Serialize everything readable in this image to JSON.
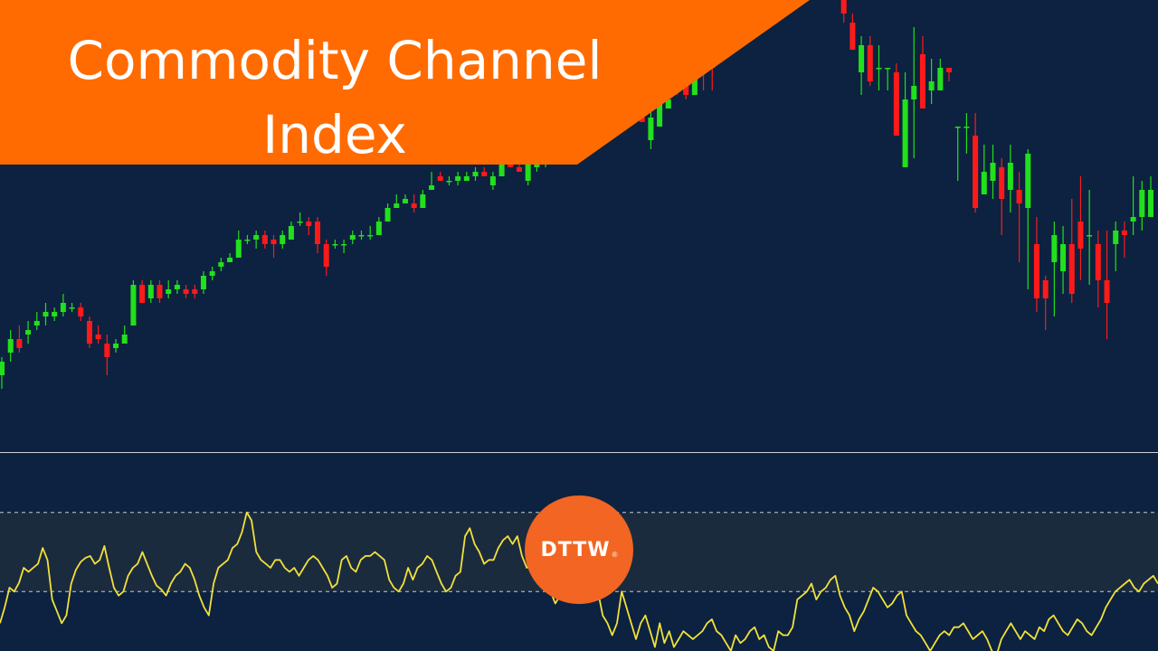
{
  "title": "Commodity Channel Index",
  "logo": {
    "text": "DTTW",
    "mark": "®"
  },
  "colors": {
    "background": "#0c2240",
    "banner": "#ff6b00",
    "candle_up": "#22e01c",
    "candle_down": "#ff1a1a",
    "wick": "#c8c8c8",
    "indicator_line": "#f2e13a",
    "band_fill": "#1b2b3e",
    "band_line": "#c9cdd2",
    "separator": "#cfd3d8",
    "logo_bg": "#f26522"
  },
  "chart_data": [
    {
      "type": "candlestick",
      "title": "",
      "xlabel": "",
      "ylabel": "",
      "grid": false,
      "ylim": [
        0,
        100
      ],
      "candles": [
        [
          17,
          20,
          21,
          14
        ],
        [
          22,
          25,
          27,
          20
        ],
        [
          25,
          23,
          28,
          22
        ],
        [
          26,
          27,
          29,
          24
        ],
        [
          28,
          29,
          31,
          27
        ],
        [
          30,
          31,
          33,
          28
        ],
        [
          30,
          31,
          32,
          29
        ],
        [
          31,
          33,
          35,
          30
        ],
        [
          32,
          32,
          33,
          31
        ],
        [
          32,
          30,
          33,
          29
        ],
        [
          29,
          24,
          30,
          23
        ],
        [
          26,
          25,
          28,
          24
        ],
        [
          24,
          21,
          26,
          17
        ],
        [
          23,
          24,
          25,
          22
        ],
        [
          24,
          26,
          28,
          24
        ],
        [
          28,
          37,
          38,
          34
        ],
        [
          37,
          33,
          38,
          33
        ],
        [
          34,
          37,
          38,
          33
        ],
        [
          37,
          34,
          38,
          33
        ],
        [
          35,
          36,
          38,
          34
        ],
        [
          36,
          37,
          38,
          35
        ],
        [
          36,
          35,
          37,
          34
        ],
        [
          36,
          35,
          37,
          34
        ],
        [
          36,
          39,
          40,
          35
        ],
        [
          39,
          40,
          41,
          38
        ],
        [
          41,
          42,
          43,
          40
        ],
        [
          42,
          43,
          44,
          42
        ],
        [
          43,
          47,
          49,
          43
        ],
        [
          47,
          47,
          48,
          46
        ],
        [
          47,
          48,
          49,
          45
        ],
        [
          48,
          46,
          49,
          45
        ],
        [
          47,
          46,
          48,
          43
        ],
        [
          46,
          48,
          49,
          45
        ],
        [
          47,
          50,
          51,
          47
        ],
        [
          51,
          51,
          53,
          50
        ],
        [
          51,
          50,
          52,
          48
        ],
        [
          51,
          46,
          52,
          44
        ],
        [
          46,
          41,
          47,
          39
        ],
        [
          46,
          46,
          47,
          45
        ],
        [
          46,
          46,
          47,
          44
        ],
        [
          47,
          48,
          49,
          46
        ],
        [
          48,
          48,
          49,
          47
        ],
        [
          48,
          48,
          50,
          47
        ],
        [
          48,
          51,
          52,
          48
        ],
        [
          51,
          54,
          55,
          51
        ],
        [
          54,
          55,
          57,
          54
        ],
        [
          55,
          56,
          57,
          55
        ],
        [
          55,
          54,
          57,
          53
        ],
        [
          54,
          57,
          58,
          54
        ],
        [
          58,
          59,
          62,
          58
        ],
        [
          61,
          60,
          62,
          60
        ],
        [
          60,
          60,
          61,
          59
        ],
        [
          60,
          61,
          62,
          59
        ],
        [
          60,
          61,
          62,
          60
        ],
        [
          61,
          62,
          63,
          60
        ],
        [
          62,
          61,
          63,
          61
        ],
        [
          59,
          61,
          62,
          58
        ],
        [
          61,
          65,
          66,
          61
        ],
        [
          64,
          63,
          65,
          63
        ],
        [
          63,
          62,
          64,
          62
        ],
        [
          60,
          64,
          65,
          59
        ],
        [
          63,
          64,
          65,
          62
        ],
        [
          64,
          67,
          68,
          63
        ],
        [
          66,
          71,
          73,
          65
        ],
        [
          67,
          70,
          71,
          67
        ],
        [
          69,
          71,
          72,
          69
        ],
        [
          71,
          73,
          74,
          70
        ],
        [
          71,
          73,
          74,
          70
        ],
        [
          73,
          76,
          78,
          72
        ],
        [
          76,
          78,
          79,
          77
        ],
        [
          78,
          77,
          80,
          76
        ],
        [
          78,
          77,
          79,
          76
        ],
        [
          76,
          77,
          79,
          76
        ],
        [
          78,
          73,
          79,
          73
        ],
        [
          69,
          74,
          76,
          67
        ],
        [
          72,
          77,
          78,
          72
        ],
        [
          76,
          78,
          80,
          76
        ],
        [
          84,
          80,
          84,
          79
        ],
        [
          82,
          79,
          84,
          78
        ],
        [
          79,
          85,
          86,
          79
        ],
        [
          88,
          85,
          93,
          80
        ],
        [
          88,
          85,
          88,
          80
        ],
        [
          92,
          96,
          98,
          92
        ],
        [
          99,
          94,
          101,
          94
        ],
        [
          96,
          99,
          104,
          95
        ],
        [
          98,
          100,
          102,
          98
        ],
        [
          98,
          102,
          104,
          97
        ],
        [
          105,
          99,
          107,
          96
        ],
        [
          108,
          103,
          112,
          101
        ],
        [
          101,
          110,
          110,
          97
        ],
        [
          104,
          103,
          105,
          100
        ],
        [
          102,
          106,
          106,
          100
        ],
        [
          102,
          104,
          105,
          101
        ],
        [
          104,
          107,
          108,
          104
        ],
        [
          108,
          106,
          109,
          104
        ],
        [
          107,
          105,
          109,
          103
        ],
        [
          103,
          97,
          105,
          95
        ],
        [
          95,
          89,
          97,
          89
        ],
        [
          84,
          90,
          92,
          79
        ],
        [
          90,
          82,
          92,
          81
        ],
        [
          85,
          85,
          90,
          80
        ],
        [
          85,
          85,
          85,
          80
        ],
        [
          84,
          70,
          86,
          72
        ],
        [
          63,
          78,
          84,
          63
        ],
        [
          78,
          81,
          94,
          65
        ],
        [
          88,
          76,
          92,
          81
        ],
        [
          80,
          82,
          87,
          77
        ],
        [
          80,
          85,
          87,
          80
        ],
        [
          85,
          84,
          85,
          82
        ],
        [
          72,
          72,
          70,
          60
        ],
        [
          72,
          72,
          75,
          66
        ],
        [
          70,
          54,
          75,
          53
        ],
        [
          57,
          62,
          68,
          57
        ],
        [
          60,
          64,
          68,
          56
        ],
        [
          63,
          56,
          65,
          48
        ],
        [
          58,
          64,
          68,
          53
        ],
        [
          58,
          55,
          62,
          42
        ],
        [
          54,
          66,
          67,
          36
        ],
        [
          46,
          34,
          52,
          31
        ],
        [
          38,
          34,
          39,
          27
        ],
        [
          42,
          48,
          51,
          30
        ],
        [
          40,
          46,
          50,
          35
        ],
        [
          46,
          35,
          56,
          33
        ],
        [
          51,
          45,
          61,
          38
        ],
        [
          48,
          48,
          58,
          37
        ],
        [
          46,
          38,
          49,
          32
        ],
        [
          38,
          33,
          49,
          25
        ],
        [
          46,
          49,
          51,
          40
        ],
        [
          49,
          48,
          51,
          43
        ],
        [
          51,
          52,
          61,
          48
        ],
        [
          52,
          58,
          60,
          49
        ],
        [
          52,
          58,
          61,
          52
        ]
      ]
    },
    {
      "type": "line",
      "title": "",
      "xlabel": "",
      "ylabel": "",
      "grid": false,
      "ylim": [
        -250,
        250
      ],
      "reference_lines": [
        100,
        -100
      ],
      "values": [
        -180,
        -140,
        -90,
        -100,
        -78,
        -40,
        -50,
        -40,
        -30,
        10,
        -20,
        -120,
        -150,
        -180,
        -160,
        -80,
        -45,
        -25,
        -15,
        -10,
        -30,
        -20,
        15,
        -40,
        -90,
        -110,
        -100,
        -60,
        -40,
        -30,
        0,
        -30,
        -60,
        -85,
        -95,
        -110,
        -80,
        -60,
        -50,
        -30,
        -40,
        -70,
        -110,
        -140,
        -160,
        -80,
        -40,
        -30,
        -20,
        10,
        20,
        50,
        100,
        80,
        0,
        -20,
        -30,
        -40,
        -20,
        -20,
        -40,
        -50,
        -40,
        -60,
        -40,
        -20,
        -10,
        -20,
        -40,
        -60,
        -90,
        -80,
        -20,
        -10,
        -40,
        -50,
        -20,
        -10,
        -10,
        0,
        -10,
        -20,
        -70,
        -90,
        -100,
        -80,
        -40,
        -70,
        -40,
        -30,
        -10,
        -20,
        -50,
        -80,
        -100,
        -90,
        -60,
        -50,
        40,
        60,
        20,
        0,
        -30,
        -20,
        -20,
        10,
        30,
        40,
        20,
        40,
        -10,
        -40,
        -30,
        -50,
        -60,
        -80,
        -100,
        -130,
        -110,
        -70,
        -50,
        -90,
        -120,
        -100,
        -110,
        -90,
        -100,
        -160,
        -180,
        -210,
        -180,
        -100,
        -140,
        -180,
        -220,
        -180,
        -160,
        -200,
        -240,
        -180,
        -230,
        -200,
        -240,
        -220,
        -200,
        -210,
        -220,
        -210,
        -200,
        -180,
        -170,
        -200,
        -210,
        -230,
        -250,
        -210,
        -230,
        -220,
        -200,
        -190,
        -220,
        -210,
        -240,
        -250,
        -200,
        -210,
        -210,
        -190,
        -120,
        -110,
        -100,
        -80,
        -120,
        -100,
        -90,
        -70,
        -60,
        -110,
        -140,
        -160,
        -200,
        -170,
        -150,
        -120,
        -90,
        -100,
        -120,
        -140,
        -130,
        -110,
        -100,
        -160,
        -180,
        -200,
        -210,
        -230,
        -250,
        -230,
        -210,
        -200,
        -210,
        -190,
        -190,
        -180,
        -200,
        -220,
        -210,
        -200,
        -220,
        -250,
        -260,
        -220,
        -200,
        -180,
        -200,
        -220,
        -200,
        -210,
        -220,
        -190,
        -200,
        -170,
        -160,
        -180,
        -200,
        -210,
        -190,
        -170,
        -180,
        -200,
        -210,
        -190,
        -170,
        -140,
        -120,
        -100,
        -90,
        -80,
        -70,
        -90,
        -100,
        -80,
        -70,
        -60,
        -80
      ]
    }
  ]
}
